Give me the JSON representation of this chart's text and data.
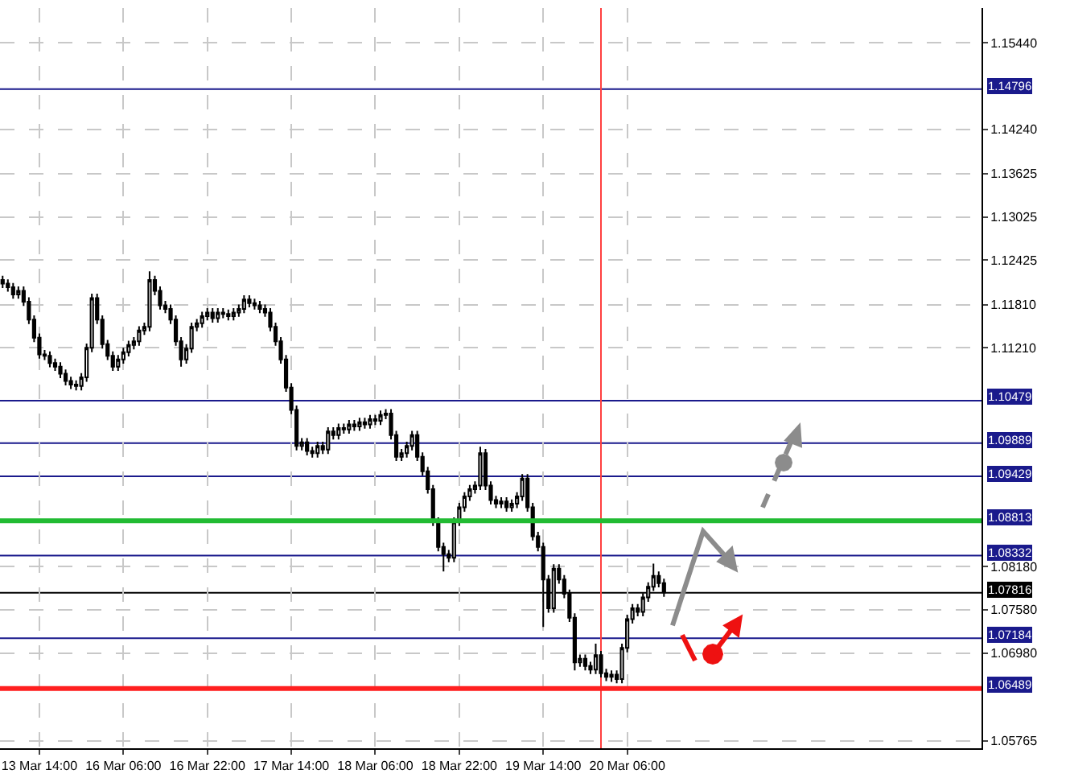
{
  "chart_data": {
    "type": "candlestick",
    "categories": [
      null,
      null,
      null,
      null,
      null,
      null,
      null,
      "13 Mar 14:00",
      null,
      null,
      null,
      null,
      null,
      null,
      null,
      null,
      null,
      null,
      null,
      null,
      null,
      null,
      null,
      "16 Mar 06:00",
      null,
      null,
      null,
      null,
      null,
      null,
      null,
      null,
      null,
      null,
      null,
      null,
      null,
      null,
      null,
      "16 Mar 22:00",
      null,
      null,
      null,
      null,
      null,
      null,
      null,
      null,
      null,
      null,
      null,
      null,
      null,
      null,
      null,
      "17 Mar 14:00",
      null,
      null,
      null,
      null,
      null,
      null,
      null,
      null,
      null,
      null,
      null,
      null,
      null,
      null,
      null,
      "18 Mar 06:00",
      null,
      null,
      null,
      null,
      null,
      null,
      null,
      null,
      null,
      null,
      null,
      null,
      null,
      null,
      null,
      "18 Mar 22:00",
      null,
      null,
      null,
      null,
      null,
      null,
      null,
      null,
      null,
      null,
      null,
      null,
      null,
      null,
      null,
      "19 Mar 14:00",
      null,
      null,
      null,
      null,
      null,
      null,
      null,
      null,
      null,
      null,
      null,
      null,
      null,
      null,
      null,
      "20 Mar 06:00",
      null,
      null,
      null,
      null,
      null,
      null,
      null,
      null,
      null,
      null,
      null,
      null,
      null,
      null,
      null,
      null,
      null,
      null,
      null,
      null,
      null,
      null,
      null,
      null,
      null,
      null,
      null,
      null,
      null,
      null,
      null,
      null,
      null,
      null,
      null,
      null,
      null,
      null,
      null,
      null,
      null,
      null,
      null,
      null,
      null,
      null,
      null,
      null,
      null,
      null,
      null,
      null,
      null,
      null,
      null,
      null,
      null,
      null,
      null,
      null,
      null,
      null,
      null,
      null,
      null,
      null,
      null
    ],
    "ohlc": [
      [
        1.1215,
        1.1221,
        1.1204,
        1.121
      ],
      [
        1.121,
        1.1216,
        1.1199,
        1.1205
      ],
      [
        1.1205,
        1.1211,
        1.1189,
        1.1195
      ],
      [
        1.1195,
        1.1206,
        1.1189,
        1.12
      ],
      [
        1.12,
        1.1206,
        1.1179,
        1.1185
      ],
      [
        1.1185,
        1.1191,
        1.1154,
        1.116
      ],
      [
        1.116,
        1.1166,
        1.1129,
        1.1135
      ],
      [
        1.1135,
        1.1141,
        1.1106,
        1.1112
      ],
      [
        1.1112,
        1.1118,
        1.1104,
        1.111
      ],
      [
        1.111,
        1.1116,
        1.1094,
        1.11
      ],
      [
        1.11,
        1.1106,
        1.1089,
        1.1095
      ],
      [
        1.1095,
        1.1101,
        1.1079,
        1.1085
      ],
      [
        1.1085,
        1.1091,
        1.1069,
        1.1075
      ],
      [
        1.1075,
        1.1081,
        1.1064,
        1.107
      ],
      [
        1.107,
        1.1076,
        1.1062,
        1.1068
      ],
      [
        1.1068,
        1.1086,
        1.1062,
        1.108
      ],
      [
        1.108,
        1.1127,
        1.1074,
        1.1121
      ],
      [
        1.1121,
        1.1196,
        1.1115,
        1.119
      ],
      [
        1.119,
        1.1196,
        1.1154,
        1.116
      ],
      [
        1.116,
        1.1166,
        1.112,
        1.1126
      ],
      [
        1.1126,
        1.1132,
        1.1104,
        1.111
      ],
      [
        1.111,
        1.1116,
        1.1089,
        1.1095
      ],
      [
        1.1095,
        1.1111,
        1.1089,
        1.1105
      ],
      [
        1.1105,
        1.1121,
        1.1099,
        1.1115
      ],
      [
        1.1115,
        1.1131,
        1.1109,
        1.1125
      ],
      [
        1.1125,
        1.1136,
        1.1119,
        1.113
      ],
      [
        1.113,
        1.1151,
        1.1124,
        1.1145
      ],
      [
        1.1145,
        1.1156,
        1.1139,
        1.115
      ],
      [
        1.115,
        1.1227,
        1.1144,
        1.1215
      ],
      [
        1.1215,
        1.1221,
        1.1194,
        1.12
      ],
      [
        1.12,
        1.1206,
        1.1174,
        1.118
      ],
      [
        1.118,
        1.1186,
        1.1169,
        1.1175
      ],
      [
        1.1175,
        1.1181,
        1.1154,
        1.116
      ],
      [
        1.116,
        1.1166,
        1.1124,
        1.113
      ],
      [
        1.113,
        1.1136,
        1.1095,
        1.1105
      ],
      [
        1.1105,
        1.1126,
        1.1099,
        1.112
      ],
      [
        1.112,
        1.1156,
        1.1114,
        1.115
      ],
      [
        1.115,
        1.1161,
        1.1144,
        1.1155
      ],
      [
        1.1155,
        1.1171,
        1.1149,
        1.1165
      ],
      [
        1.1165,
        1.1176,
        1.1159,
        1.117
      ],
      [
        1.117,
        1.1176,
        1.1156,
        1.1162
      ],
      [
        1.1162,
        1.1176,
        1.1156,
        1.117
      ],
      [
        1.117,
        1.1176,
        1.1162,
        1.1168
      ],
      [
        1.1168,
        1.1174,
        1.1159,
        1.1165
      ],
      [
        1.1165,
        1.1176,
        1.1159,
        1.117
      ],
      [
        1.117,
        1.1181,
        1.1164,
        1.1175
      ],
      [
        1.1175,
        1.1194,
        1.1169,
        1.1188
      ],
      [
        1.1188,
        1.1194,
        1.1177,
        1.1183
      ],
      [
        1.1183,
        1.1189,
        1.1174,
        1.118
      ],
      [
        1.118,
        1.1186,
        1.1169,
        1.1175
      ],
      [
        1.1175,
        1.1181,
        1.1164,
        1.117
      ],
      [
        1.117,
        1.1176,
        1.1144,
        1.115
      ],
      [
        1.115,
        1.1156,
        1.1124,
        1.113
      ],
      [
        1.113,
        1.1136,
        1.1099,
        1.1105
      ],
      [
        1.1105,
        1.1111,
        1.106,
        1.1066
      ],
      [
        1.1066,
        1.1072,
        1.1029,
        1.1035
      ],
      [
        1.1035,
        1.1041,
        1.0979,
        1.0985
      ],
      [
        1.0985,
        1.0996,
        1.0979,
        1.099
      ],
      [
        1.099,
        1.0996,
        1.0972,
        1.0978
      ],
      [
        1.0978,
        1.0984,
        1.0969,
        1.0975
      ],
      [
        1.0975,
        1.0991,
        1.0969,
        1.0985
      ],
      [
        1.0985,
        1.0991,
        1.0974,
        1.098
      ],
      [
        1.098,
        1.1011,
        1.0974,
        1.1005
      ],
      [
        1.1005,
        1.1011,
        1.0994,
        1.1
      ],
      [
        1.1,
        1.1016,
        1.0994,
        1.101
      ],
      [
        1.101,
        1.1016,
        1.1002,
        1.1008
      ],
      [
        1.1008,
        1.1021,
        1.1002,
        1.1015
      ],
      [
        1.1015,
        1.1021,
        1.1006,
        1.1012
      ],
      [
        1.1012,
        1.1024,
        1.1006,
        1.1018
      ],
      [
        1.1018,
        1.1024,
        1.1009,
        1.1015
      ],
      [
        1.1015,
        1.1028,
        1.1009,
        1.1022
      ],
      [
        1.1022,
        1.1028,
        1.1014,
        1.102
      ],
      [
        1.102,
        1.1034,
        1.1014,
        1.1028
      ],
      [
        1.1028,
        1.1036,
        1.1022,
        1.103
      ],
      [
        1.103,
        1.1036,
        1.0994,
        1.1
      ],
      [
        1.1,
        1.1006,
        1.0964,
        1.097
      ],
      [
        1.097,
        1.0981,
        1.0964,
        1.0975
      ],
      [
        1.0975,
        1.0991,
        1.0969,
        1.0985
      ],
      [
        1.0985,
        1.1006,
        1.0979,
        1.1
      ],
      [
        1.1,
        1.1006,
        1.0964,
        1.097
      ],
      [
        1.097,
        1.0976,
        1.0944,
        1.095
      ],
      [
        1.095,
        1.0956,
        1.0919,
        1.0925
      ],
      [
        1.0925,
        1.0931,
        1.0874,
        1.088
      ],
      [
        1.088,
        1.0886,
        1.0839,
        1.0845
      ],
      [
        1.0845,
        1.0851,
        1.0811,
        1.0835
      ],
      [
        1.0835,
        1.0841,
        1.0824,
        1.083
      ],
      [
        1.083,
        1.0886,
        1.0824,
        1.088
      ],
      [
        1.088,
        1.0906,
        1.0874,
        1.09
      ],
      [
        1.09,
        1.0921,
        1.0894,
        1.0915
      ],
      [
        1.0915,
        1.0931,
        1.0909,
        1.0925
      ],
      [
        1.0925,
        1.0936,
        1.0919,
        1.093
      ],
      [
        1.093,
        1.0984,
        1.0924,
        1.0975
      ],
      [
        1.0975,
        1.0981,
        1.0924,
        1.093
      ],
      [
        1.093,
        1.0936,
        1.0904,
        1.091
      ],
      [
        1.091,
        1.0916,
        1.0899,
        1.0905
      ],
      [
        1.0905,
        1.0914,
        1.0899,
        1.0908
      ],
      [
        1.0908,
        1.0914,
        1.0894,
        1.09
      ],
      [
        1.09,
        1.0911,
        1.0894,
        1.0905
      ],
      [
        1.0905,
        1.0921,
        1.0899,
        1.0915
      ],
      [
        1.0915,
        1.0946,
        1.0909,
        1.094
      ],
      [
        1.094,
        1.0946,
        1.0894,
        1.09
      ],
      [
        1.09,
        1.0906,
        1.0854,
        1.086
      ],
      [
        1.086,
        1.0866,
        1.0839,
        1.0845
      ],
      [
        1.0845,
        1.0851,
        1.0734,
        1.08
      ],
      [
        1.08,
        1.0806,
        1.0754,
        1.076
      ],
      [
        1.076,
        1.0821,
        1.0754,
        1.0815
      ],
      [
        1.0815,
        1.0821,
        1.0794,
        1.08
      ],
      [
        1.08,
        1.0806,
        1.0774,
        1.078
      ],
      [
        1.078,
        1.0786,
        1.0741,
        1.0747
      ],
      [
        1.0747,
        1.0753,
        1.0674,
        1.0685
      ],
      [
        1.0685,
        1.0696,
        1.0679,
        1.069
      ],
      [
        1.069,
        1.0696,
        1.0674,
        1.068
      ],
      [
        1.068,
        1.0686,
        1.0669,
        1.0675
      ],
      [
        1.0675,
        1.0711,
        1.0669,
        1.0695
      ],
      [
        1.0695,
        1.0701,
        1.0664,
        1.067
      ],
      [
        1.067,
        1.0676,
        1.0659,
        1.0665
      ],
      [
        1.0665,
        1.0674,
        1.0658,
        1.0668
      ],
      [
        1.0668,
        1.0674,
        1.0656,
        1.0662
      ],
      [
        1.0662,
        1.0711,
        1.0656,
        1.0705
      ],
      [
        1.0705,
        1.0751,
        1.0699,
        1.0745
      ],
      [
        1.0745,
        1.0766,
        1.0739,
        1.076
      ],
      [
        1.076,
        1.0766,
        1.0749,
        1.0755
      ],
      [
        1.0755,
        1.0781,
        1.0749,
        1.0775
      ],
      [
        1.0775,
        1.0796,
        1.0769,
        1.079
      ],
      [
        1.079,
        1.0822,
        1.0784,
        1.0805
      ],
      [
        1.0805,
        1.0811,
        1.0789,
        1.0795
      ],
      [
        1.0795,
        1.0801,
        1.0776,
        1.0782
      ],
      null,
      null,
      null,
      null,
      null,
      null,
      null,
      null,
      null,
      null,
      null,
      null,
      null,
      null,
      null,
      null,
      null,
      null,
      null,
      null,
      null,
      null,
      null,
      null,
      null,
      null,
      null,
      null,
      null,
      null,
      null,
      null,
      null,
      null,
      null,
      null,
      null,
      null,
      null,
      null,
      null,
      null,
      null,
      null,
      null,
      null,
      null,
      null,
      null,
      null,
      null,
      null,
      null,
      null,
      null,
      null,
      null,
      null,
      null,
      null
    ],
    "ylim": [
      1.0566,
      1.1592
    ],
    "yticks": [
      {
        "value": 1.1544,
        "label": "1.15440"
      },
      {
        "value": 1.1424,
        "label": "1.14240"
      },
      {
        "value": 1.13625,
        "label": "1.13625"
      },
      {
        "value": 1.13025,
        "label": "1.13025"
      },
      {
        "value": 1.12425,
        "label": "1.12425"
      },
      {
        "value": 1.1181,
        "label": "1.11810"
      },
      {
        "value": 1.1121,
        "label": "1.11210"
      },
      {
        "value": 1.0818,
        "label": "1.08180"
      },
      {
        "value": 1.0758,
        "label": "1.07580"
      },
      {
        "value": 1.0698,
        "label": "1.06980"
      },
      {
        "value": 1.05765,
        "label": "1.05765"
      }
    ],
    "ref_lines": [
      {
        "axis": "y",
        "value": 1.14796,
        "label": "1.14796",
        "color": "#1a1a8c"
      },
      {
        "axis": "y",
        "value": 1.10479,
        "label": "1.10479",
        "color": "#1a1a8c"
      },
      {
        "axis": "y",
        "value": 1.09889,
        "label": "1.09889",
        "color": "#1a1a8c"
      },
      {
        "axis": "y",
        "value": 1.09429,
        "label": "1.09429",
        "color": "#1a1a8c"
      },
      {
        "axis": "y",
        "value": 1.08813,
        "label": "1.08813",
        "color": "#22bb33"
      },
      {
        "axis": "y",
        "value": 1.08332,
        "label": "1.08332",
        "color": "#1a1a8c"
      },
      {
        "axis": "y",
        "value": 1.07816,
        "label": "1.07816",
        "color": "#000000"
      },
      {
        "axis": "y",
        "value": 1.07184,
        "label": "1.07184",
        "color": "#1a1a8c"
      },
      {
        "axis": "y",
        "value": 1.06489,
        "label": "1.06489",
        "color": "#ff2020"
      }
    ],
    "grid": true
  }
}
